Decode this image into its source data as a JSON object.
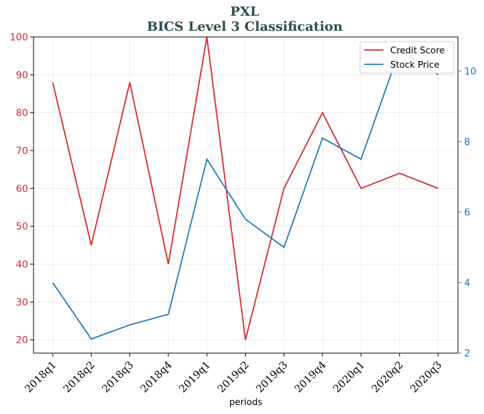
{
  "chart_data": {
    "type": "line",
    "title": "PXL",
    "subtitle": "BICS Level 3 Classification",
    "xlabel": "periods",
    "categories": [
      "2018q1",
      "2018q2",
      "2018q3",
      "2018q4",
      "2019q1",
      "2019q2",
      "2019q3",
      "2019q4",
      "2020q1",
      "2020q2",
      "2020q3"
    ],
    "series": [
      {
        "name": "Credit Score",
        "axis": "left",
        "color": "#d62728",
        "values": [
          88,
          45,
          88,
          40,
          100,
          20,
          60,
          80,
          60,
          64,
          60
        ]
      },
      {
        "name": "Stock Price",
        "axis": "right",
        "color": "#1f77b4",
        "values": [
          4.0,
          2.4,
          2.8,
          3.1,
          7.5,
          5.8,
          5.0,
          8.1,
          7.5,
          10.6,
          9.9
        ]
      }
    ],
    "left_axis": {
      "min": 16.5,
      "max": 100,
      "ticks": [
        20,
        30,
        40,
        50,
        60,
        70,
        80,
        90,
        100
      ],
      "color": "#d62728"
    },
    "right_axis": {
      "min": 2.0,
      "max": 10.97,
      "ticks": [
        2,
        4,
        6,
        8,
        10
      ],
      "color": "#1f77b4"
    },
    "grid": true,
    "legend": "top-right"
  }
}
